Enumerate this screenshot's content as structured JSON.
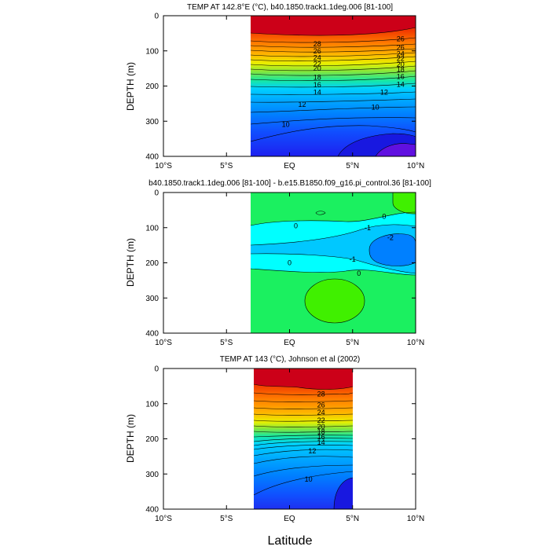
{
  "figure": {
    "xlabel": "Latitude"
  },
  "chart_data": [
    {
      "type": "heatmap",
      "title": "TEMP AT 142.8°E (°C), b40.1850.track1.1deg.006 [81-100]",
      "ylabel": "DEPTH (m)",
      "xlabel": "",
      "xticks": [
        "10°S",
        "5°S",
        "EQ",
        "5°N",
        "10°N"
      ],
      "xtick_values": [
        -10,
        -5,
        0,
        5,
        10
      ],
      "yticks": [
        "0",
        "100",
        "200",
        "300",
        "400"
      ],
      "ytick_values": [
        0,
        100,
        200,
        300,
        400
      ],
      "xlim": [
        -10,
        10
      ],
      "ylim": [
        0,
        400
      ],
      "data_xrange": [
        -3,
        10
      ],
      "contour_labels": [
        {
          "label": "28",
          "x": 2.2,
          "y": 80
        },
        {
          "label": "26",
          "x": 2.2,
          "y": 100
        },
        {
          "label": "24",
          "x": 2.2,
          "y": 120
        },
        {
          "label": "22",
          "x": 2.2,
          "y": 137
        },
        {
          "label": "20",
          "x": 2.2,
          "y": 150
        },
        {
          "label": "18",
          "x": 2.2,
          "y": 175
        },
        {
          "label": "16",
          "x": 2.2,
          "y": 197
        },
        {
          "label": "14",
          "x": 2.2,
          "y": 218
        },
        {
          "label": "12",
          "x": 1.0,
          "y": 252
        },
        {
          "label": "10",
          "x": -0.3,
          "y": 310
        },
        {
          "label": "26",
          "x": 8.8,
          "y": 66
        },
        {
          "label": "26",
          "x": 8.8,
          "y": 90
        },
        {
          "label": "24",
          "x": 8.8,
          "y": 108
        },
        {
          "label": "22",
          "x": 8.8,
          "y": 122
        },
        {
          "label": "20",
          "x": 8.8,
          "y": 138
        },
        {
          "label": "18",
          "x": 8.8,
          "y": 153
        },
        {
          "label": "16",
          "x": 8.8,
          "y": 173
        },
        {
          "label": "14",
          "x": 8.8,
          "y": 196
        },
        {
          "label": "12",
          "x": 7.5,
          "y": 218
        },
        {
          "label": "10",
          "x": 6.8,
          "y": 260
        }
      ]
    },
    {
      "type": "heatmap",
      "title": "b40.1850.track1.1deg.006 [81-100] - b.e15.B1850.f09_g16.pi_control.36 [81-100]",
      "ylabel": "DEPTH (m)",
      "xlabel": "",
      "xticks": [
        "10°S",
        "5°S",
        "EQ",
        "5°N",
        "10°N"
      ],
      "xtick_values": [
        -10,
        -5,
        0,
        5,
        10
      ],
      "yticks": [
        "0",
        "100",
        "200",
        "300",
        "400"
      ],
      "ytick_values": [
        0,
        100,
        200,
        300,
        400
      ],
      "xlim": [
        -10,
        10
      ],
      "ylim": [
        0,
        400
      ],
      "data_xrange": [
        -3,
        10
      ],
      "contour_labels": [
        {
          "label": "0",
          "x": 0.5,
          "y": 95
        },
        {
          "label": "-1",
          "x": 6.2,
          "y": 100
        },
        {
          "label": "0",
          "x": 7.5,
          "y": 68
        },
        {
          "label": "-2",
          "x": 8.0,
          "y": 128
        },
        {
          "label": "-1",
          "x": 5.0,
          "y": 190
        },
        {
          "label": "0",
          "x": 0.0,
          "y": 200
        },
        {
          "label": "0",
          "x": 5.5,
          "y": 230
        }
      ]
    },
    {
      "type": "heatmap",
      "title": "TEMP AT 143 (°C), Johnson et al (2002)",
      "ylabel": "DEPTH (m)",
      "xlabel": "",
      "xticks": [
        "10°S",
        "5°S",
        "EQ",
        "5°N",
        "10°N"
      ],
      "xtick_values": [
        -10,
        -5,
        0,
        5,
        10
      ],
      "yticks": [
        "0",
        "100",
        "200",
        "300",
        "400"
      ],
      "ytick_values": [
        0,
        100,
        200,
        300,
        400
      ],
      "xlim": [
        -10,
        10
      ],
      "ylim": [
        0,
        400
      ],
      "data_xrange": [
        -2.8,
        5
      ],
      "contour_labels": [
        {
          "label": "28",
          "x": 2.5,
          "y": 73
        },
        {
          "label": "26",
          "x": 2.5,
          "y": 104
        },
        {
          "label": "24",
          "x": 2.5,
          "y": 125
        },
        {
          "label": "22",
          "x": 2.5,
          "y": 147
        },
        {
          "label": "20",
          "x": 2.5,
          "y": 165
        },
        {
          "label": "18",
          "x": 2.5,
          "y": 180
        },
        {
          "label": "16",
          "x": 2.5,
          "y": 194
        },
        {
          "label": "14",
          "x": 2.5,
          "y": 210
        },
        {
          "label": "12",
          "x": 1.8,
          "y": 235
        },
        {
          "label": "10",
          "x": 1.5,
          "y": 315
        }
      ]
    }
  ]
}
